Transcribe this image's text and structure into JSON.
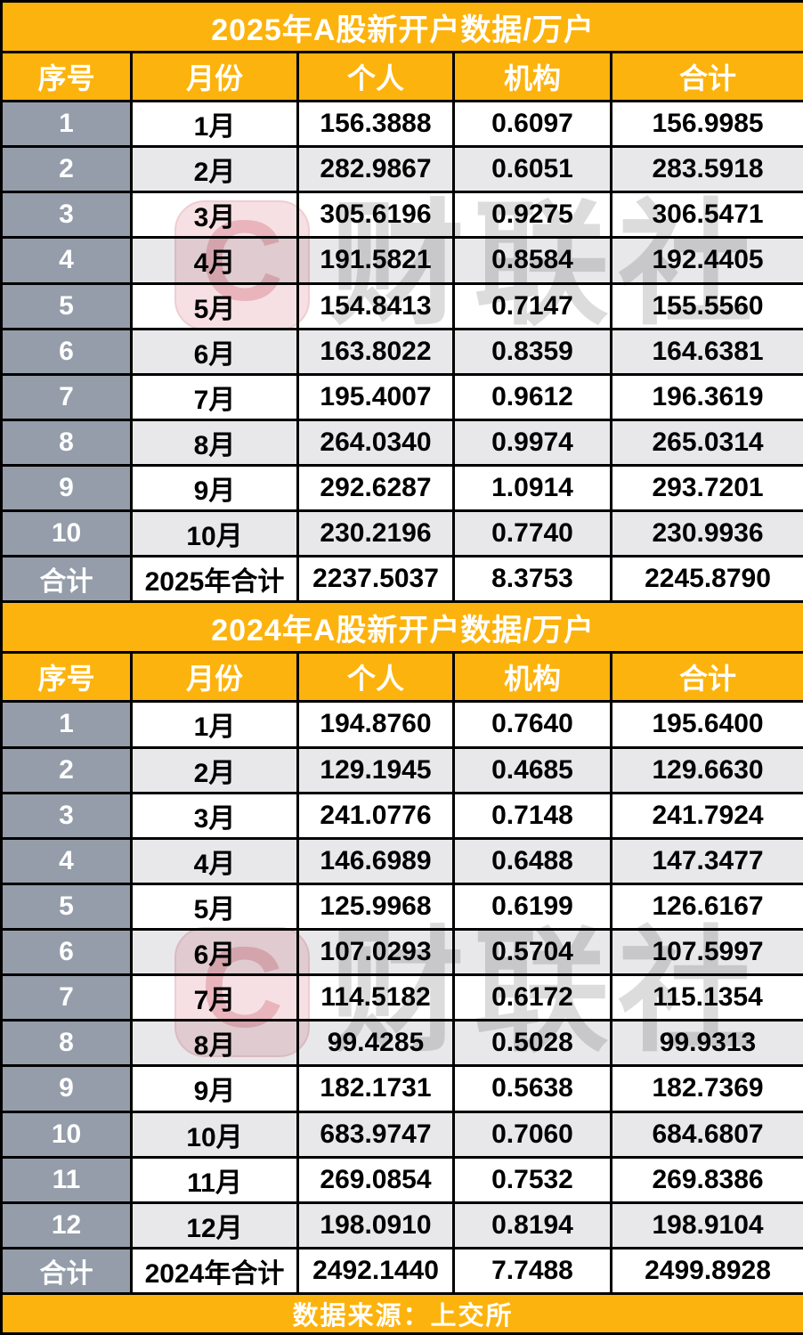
{
  "colors": {
    "accent_orange": "#FDB30D",
    "index_column_gray": "#949DA9",
    "alt_row_gray": "#E8E8EA",
    "border_black": "#000000",
    "watermark_pink": "#f6e0e3",
    "watermark_text_gray": "#dcdcdc"
  },
  "watermark": {
    "logo_letter": "C",
    "brand_text": "财联社"
  },
  "footer": {
    "text": "数据来源：上交所"
  },
  "chart_data": [
    {
      "type": "table",
      "title": "2025年A股新开户数据/万户",
      "columns": [
        "序号",
        "月份",
        "个人",
        "机构",
        "合计"
      ],
      "rows": [
        [
          "1",
          "1月",
          "156.3888",
          "0.6097",
          "156.9985"
        ],
        [
          "2",
          "2月",
          "282.9867",
          "0.6051",
          "283.5918"
        ],
        [
          "3",
          "3月",
          "305.6196",
          "0.9275",
          "306.5471"
        ],
        [
          "4",
          "4月",
          "191.5821",
          "0.8584",
          "192.4405"
        ],
        [
          "5",
          "5月",
          "154.8413",
          "0.7147",
          "155.5560"
        ],
        [
          "6",
          "6月",
          "163.8022",
          "0.8359",
          "164.6381"
        ],
        [
          "7",
          "7月",
          "195.4007",
          "0.9612",
          "196.3619"
        ],
        [
          "8",
          "8月",
          "264.0340",
          "0.9974",
          "265.0314"
        ],
        [
          "9",
          "9月",
          "292.6287",
          "1.0914",
          "293.7201"
        ],
        [
          "10",
          "10月",
          "230.2196",
          "0.7740",
          "230.9936"
        ],
        [
          "合计",
          "2025年合计",
          "2237.5037",
          "8.3753",
          "2245.8790"
        ]
      ]
    },
    {
      "type": "table",
      "title": "2024年A股新开户数据/万户",
      "columns": [
        "序号",
        "月份",
        "个人",
        "机构",
        "合计"
      ],
      "rows": [
        [
          "1",
          "1月",
          "194.8760",
          "0.7640",
          "195.6400"
        ],
        [
          "2",
          "2月",
          "129.1945",
          "0.4685",
          "129.6630"
        ],
        [
          "3",
          "3月",
          "241.0776",
          "0.7148",
          "241.7924"
        ],
        [
          "4",
          "4月",
          "146.6989",
          "0.6488",
          "147.3477"
        ],
        [
          "5",
          "5月",
          "125.9968",
          "0.6199",
          "126.6167"
        ],
        [
          "6",
          "6月",
          "107.0293",
          "0.5704",
          "107.5997"
        ],
        [
          "7",
          "7月",
          "114.5182",
          "0.6172",
          "115.1354"
        ],
        [
          "8",
          "8月",
          "99.4285",
          "0.5028",
          "99.9313"
        ],
        [
          "9",
          "9月",
          "182.1731",
          "0.5638",
          "182.7369"
        ],
        [
          "10",
          "10月",
          "683.9747",
          "0.7060",
          "684.6807"
        ],
        [
          "11",
          "11月",
          "269.0854",
          "0.7532",
          "269.8386"
        ],
        [
          "12",
          "12月",
          "198.0910",
          "0.8194",
          "198.9104"
        ],
        [
          "合计",
          "2024年合计",
          "2492.1440",
          "7.7488",
          "2499.8928"
        ]
      ]
    }
  ]
}
